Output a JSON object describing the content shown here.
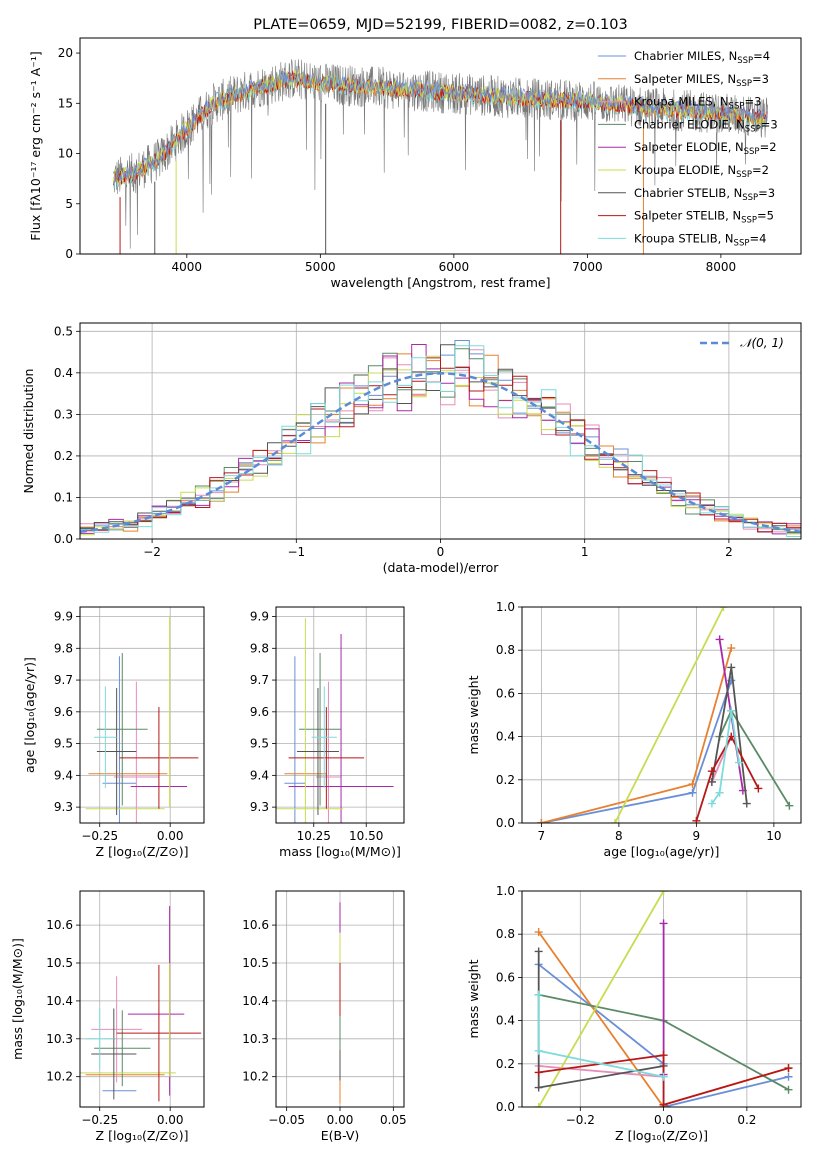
{
  "palette": [
    "#6a8fd8",
    "#e8802f",
    "#e88cb8",
    "#5a8a66",
    "#a82aa8",
    "#c8dc50",
    "#555555",
    "#b81818",
    "#7cdcdc"
  ],
  "chart_data": [
    {
      "id": "spectrum",
      "type": "line",
      "title": "PLATE=0659, MJD=52199, FIBERID=0082, z=0.103",
      "xlabel": "wavelength [Angstrom, rest frame]",
      "ylabel": "Flux [fλ10⁻¹⁷ erg cm⁻² s⁻¹ A⁻¹]",
      "xlim": [
        3200,
        8600
      ],
      "ylim": [
        0,
        21.5
      ],
      "xticks": [
        4000,
        5000,
        6000,
        7000,
        8000
      ],
      "yticks": [
        0,
        5,
        10,
        15,
        20
      ],
      "grid": false,
      "legend_position": "upper-right",
      "legend": [
        {
          "label": "Chabrier MILES, N",
          "sub": "SSP",
          "tail": "=4"
        },
        {
          "label": "Salpeter MILES, N",
          "sub": "SSP",
          "tail": "=3"
        },
        {
          "label": "Kroupa MILES, N",
          "sub": "SSP",
          "tail": "=3"
        },
        {
          "label": "Chabrier ELODIE, N",
          "sub": "SSP",
          "tail": "=3"
        },
        {
          "label": "Salpeter ELODIE, N",
          "sub": "SSP",
          "tail": "=2"
        },
        {
          "label": "Kroupa ELODIE, N",
          "sub": "SSP",
          "tail": "=2"
        },
        {
          "label": "Chabrier STELIB, N",
          "sub": "SSP",
          "tail": "=3"
        },
        {
          "label": "Salpeter STELIB, N",
          "sub": "SSP",
          "tail": "=5"
        },
        {
          "label": "Kroupa STELIB, N",
          "sub": "SSP",
          "tail": "=4"
        }
      ],
      "continuum": {
        "x": [
          3450,
          3600,
          3800,
          4000,
          4200,
          4500,
          4800,
          5000,
          5500,
          6000,
          6500,
          7000,
          7500,
          8000,
          8350
        ],
        "y": [
          7.5,
          8.0,
          9.5,
          12.5,
          15.0,
          16.5,
          17.5,
          17.0,
          16.5,
          16.0,
          15.5,
          15.2,
          14.5,
          14.0,
          13.5
        ]
      }
    },
    {
      "id": "residuals",
      "type": "line",
      "xlabel": "(data-model)/error",
      "ylabel": "Normed distribution",
      "xlim": [
        -2.5,
        2.5
      ],
      "ylim": [
        0,
        0.52
      ],
      "xticks": [
        -2,
        -1,
        0,
        1,
        2
      ],
      "yticks": [
        0.0,
        0.1,
        0.2,
        0.3,
        0.4,
        0.5
      ],
      "grid": true,
      "legend_position": "upper-right",
      "legend_label": "𝒩(0, 1)",
      "bin_width": 0.1
    },
    {
      "id": "age-vs-z",
      "type": "scatter",
      "xlabel": "Z [log₁₀(Z/Z⊙)]",
      "ylabel": "age  [log₁₀(age/yr)]",
      "xlim": [
        -0.32,
        0.12
      ],
      "ylim": [
        9.25,
        9.93
      ],
      "xticks": [
        -0.25,
        0.0
      ],
      "yticks": [
        9.3,
        9.4,
        9.5,
        9.6,
        9.7,
        9.8,
        9.9
      ],
      "grid": true,
      "points": [
        {
          "x": -0.18,
          "y": 9.375,
          "xerr": 0.06,
          "yerr": 0.4,
          "c": 0
        },
        {
          "x": -0.15,
          "y": 9.405,
          "xerr": 0.14,
          "yerr": 0.0,
          "c": 1
        },
        {
          "x": -0.12,
          "y": 9.395,
          "xerr": 0.08,
          "yerr": 0.3,
          "c": 2
        },
        {
          "x": -0.17,
          "y": 9.545,
          "xerr": 0.09,
          "yerr": 0.24,
          "c": 3
        },
        {
          "x": -0.04,
          "y": 9.365,
          "xerr": 0.1,
          "yerr": 0.0,
          "c": 4
        },
        {
          "x": -0.16,
          "y": 9.295,
          "xerr": 0.14,
          "yerr": 0.0,
          "c": 5
        },
        {
          "x": -0.19,
          "y": 9.475,
          "xerr": 0.07,
          "yerr": 0.2,
          "c": 6
        },
        {
          "x": -0.04,
          "y": 9.455,
          "xerr": 0.14,
          "yerr": 0.16,
          "c": 7
        },
        {
          "x": -0.23,
          "y": 9.52,
          "xerr": 0.04,
          "yerr": 0.16,
          "c": 8
        },
        {
          "x": -0.002,
          "y": 9.6,
          "xerr": 0.0,
          "yerr": 0.3,
          "c": 5
        }
      ]
    },
    {
      "id": "age-vs-mass",
      "type": "scatter",
      "xlabel": "mass [log₁₀(M/M⊙)]",
      "ylabel": "",
      "xlim": [
        10.07,
        10.68
      ],
      "ylim": [
        9.25,
        9.93
      ],
      "xticks": [
        10.25,
        10.5
      ],
      "yticks": [
        9.3,
        9.4,
        9.5,
        9.6,
        9.7,
        9.8,
        9.9
      ],
      "grid": true,
      "points": [
        {
          "x": 10.16,
          "y": 9.375,
          "xerr": 0.05,
          "yerr": 0.4,
          "c": 0
        },
        {
          "x": 10.21,
          "y": 9.405,
          "xerr": 0.1,
          "yerr": 0.0,
          "c": 1
        },
        {
          "x": 10.32,
          "y": 9.395,
          "xerr": 0.06,
          "yerr": 0.3,
          "c": 2
        },
        {
          "x": 10.28,
          "y": 9.545,
          "xerr": 0.1,
          "yerr": 0.24,
          "c": 3
        },
        {
          "x": 10.38,
          "y": 9.365,
          "xerr": 0.25,
          "yerr": 0.48,
          "c": 4
        },
        {
          "x": 10.21,
          "y": 9.295,
          "xerr": 0.18,
          "yerr": 0.6,
          "c": 5
        },
        {
          "x": 10.27,
          "y": 9.475,
          "xerr": 0.1,
          "yerr": 0.2,
          "c": 6
        },
        {
          "x": 10.31,
          "y": 9.455,
          "xerr": 0.18,
          "yerr": 0.16,
          "c": 7
        },
        {
          "x": 10.3,
          "y": 9.52,
          "xerr": 0.06,
          "yerr": 0.16,
          "c": 8
        }
      ]
    },
    {
      "id": "weight-vs-age",
      "type": "line",
      "xlabel": "age  [log₁₀(age/yr)]",
      "ylabel": "mass weight",
      "xlim": [
        6.75,
        10.35
      ],
      "ylim": [
        0,
        1.0
      ],
      "xticks": [
        7,
        8,
        9,
        10
      ],
      "yticks": [
        0.0,
        0.2,
        0.4,
        0.6,
        0.8,
        1.0
      ],
      "grid": true,
      "series": [
        {
          "c": 0,
          "x": [
            7.0,
            8.95,
            9.45
          ],
          "y": [
            0.0,
            0.14,
            0.66
          ]
        },
        {
          "c": 1,
          "x": [
            7.0,
            8.95,
            9.45
          ],
          "y": [
            0.0,
            0.18,
            0.81
          ]
        },
        {
          "c": 2,
          "x": [
            9.2,
            9.45
          ],
          "y": [
            0.19,
            0.4
          ]
        },
        {
          "c": 3,
          "x": [
            9.3,
            9.45,
            10.2
          ],
          "y": [
            0.4,
            0.52,
            0.08
          ]
        },
        {
          "c": 4,
          "x": [
            9.3,
            9.6
          ],
          "y": [
            0.85,
            0.15
          ]
        },
        {
          "c": 5,
          "x": [
            7.95,
            9.35
          ],
          "y": [
            0.0,
            1.0
          ]
        },
        {
          "c": 6,
          "x": [
            9.2,
            9.45,
            9.65
          ],
          "y": [
            0.19,
            0.72,
            0.09
          ]
        },
        {
          "c": 7,
          "x": [
            9.0,
            9.2,
            9.45,
            9.8
          ],
          "y": [
            0.01,
            0.24,
            0.4,
            0.16
          ]
        },
        {
          "c": 8,
          "x": [
            9.2,
            9.3,
            9.45,
            9.55
          ],
          "y": [
            0.09,
            0.14,
            0.52,
            0.28
          ]
        }
      ]
    },
    {
      "id": "mass-vs-z",
      "type": "scatter",
      "xlabel": "Z [log₁₀(Z/Z⊙)]",
      "ylabel": "mass [log₁₀(M/M⊙)]",
      "xlim": [
        -0.32,
        0.12
      ],
      "ylim": [
        10.12,
        10.69
      ],
      "xticks": [
        -0.25,
        0.0
      ],
      "yticks": [
        10.2,
        10.3,
        10.4,
        10.5,
        10.6
      ],
      "grid": true,
      "points": [
        {
          "x": -0.18,
          "y": 10.163,
          "xerr": 0.06,
          "yerr": 0.0,
          "c": 0
        },
        {
          "x": -0.16,
          "y": 10.205,
          "xerr": 0.14,
          "yerr": 0.0,
          "c": 1
        },
        {
          "x": -0.19,
          "y": 10.325,
          "xerr": 0.09,
          "yerr": 0.14,
          "c": 2
        },
        {
          "x": -0.17,
          "y": 10.275,
          "xerr": 0.1,
          "yerr": 0.1,
          "c": 3
        },
        {
          "x": -0.05,
          "y": 10.365,
          "xerr": 0.1,
          "yerr": 0.0,
          "c": 4
        },
        {
          "x": -0.16,
          "y": 10.21,
          "xerr": 0.18,
          "yerr": 0.0,
          "c": 5
        },
        {
          "x": -0.2,
          "y": 10.26,
          "xerr": 0.08,
          "yerr": 0.12,
          "c": 6
        },
        {
          "x": -0.04,
          "y": 10.315,
          "xerr": 0.15,
          "yerr": 0.18,
          "c": 7
        },
        {
          "x": -0.25,
          "y": 10.3,
          "xerr": 0.05,
          "yerr": 0.08,
          "c": 8
        },
        {
          "x": -0.002,
          "y": 10.4,
          "xerr": 0.0,
          "yerr": 0.25,
          "c": 4
        },
        {
          "x": -0.002,
          "y": 10.35,
          "xerr": 0.0,
          "yerr": 0.15,
          "c": 5
        }
      ]
    },
    {
      "id": "mass-vs-ebv",
      "type": "scatter",
      "xlabel": "E(B-V)",
      "ylabel": "",
      "xlim": [
        -0.06,
        0.06
      ],
      "ylim": [
        10.12,
        10.69
      ],
      "xticks": [
        -0.05,
        0.0,
        0.05
      ],
      "yticks": [
        10.2,
        10.3,
        10.4,
        10.5,
        10.6
      ],
      "grid": true,
      "points": [
        {
          "x": 0.0,
          "y": 10.6,
          "xerr": 0.0,
          "yerr": 0.06,
          "c": 4
        },
        {
          "x": 0.0,
          "y": 10.52,
          "xerr": 0.0,
          "yerr": 0.06,
          "c": 5
        },
        {
          "x": 0.0,
          "y": 10.42,
          "xerr": 0.0,
          "yerr": 0.08,
          "c": 7
        },
        {
          "x": 0.0,
          "y": 10.3,
          "xerr": 0.0,
          "yerr": 0.06,
          "c": 3
        },
        {
          "x": 0.0,
          "y": 10.22,
          "xerr": 0.0,
          "yerr": 0.05,
          "c": 6
        },
        {
          "x": 0.0,
          "y": 10.16,
          "xerr": 0.0,
          "yerr": 0.03,
          "c": 1
        }
      ]
    },
    {
      "id": "weight-vs-z",
      "type": "line",
      "xlabel": "Z [log₁₀(Z/Z⊙)]",
      "ylabel": "mass weight",
      "xlim": [
        -0.34,
        0.33
      ],
      "ylim": [
        0,
        1.0
      ],
      "xticks": [
        -0.2,
        0.0,
        0.2
      ],
      "yticks": [
        0.0,
        0.2,
        0.4,
        0.6,
        0.8,
        1.0
      ],
      "grid": true,
      "series": [
        {
          "c": 0,
          "x": [
            -0.3,
            0.0,
            0.0,
            0.3
          ],
          "y": [
            0.66,
            0.2,
            0.0,
            0.14
          ]
        },
        {
          "c": 1,
          "x": [
            -0.3,
            0.0,
            0.0,
            0.3
          ],
          "y": [
            0.81,
            0.0,
            0.01,
            0.18
          ]
        },
        {
          "c": 2,
          "x": [
            -0.3,
            0.0
          ],
          "y": [
            0.19,
            0.14
          ]
        },
        {
          "c": 3,
          "x": [
            -0.3,
            0.0,
            0.3
          ],
          "y": [
            0.52,
            0.4,
            0.08
          ]
        },
        {
          "c": 4,
          "x": [
            0.0,
            0.0
          ],
          "y": [
            0.85,
            0.15
          ]
        },
        {
          "c": 5,
          "x": [
            -0.3,
            0.0
          ],
          "y": [
            0.0,
            1.0
          ]
        },
        {
          "c": 6,
          "x": [
            -0.3,
            -0.3,
            0.0
          ],
          "y": [
            0.72,
            0.09,
            0.19
          ]
        },
        {
          "c": 7,
          "x": [
            -0.3,
            0.0,
            0.0,
            0.3
          ],
          "y": [
            0.16,
            0.24,
            0.01,
            0.18
          ]
        },
        {
          "c": 8,
          "x": [
            -0.3,
            -0.3,
            0.0
          ],
          "y": [
            0.52,
            0.26,
            0.14
          ]
        }
      ]
    }
  ]
}
